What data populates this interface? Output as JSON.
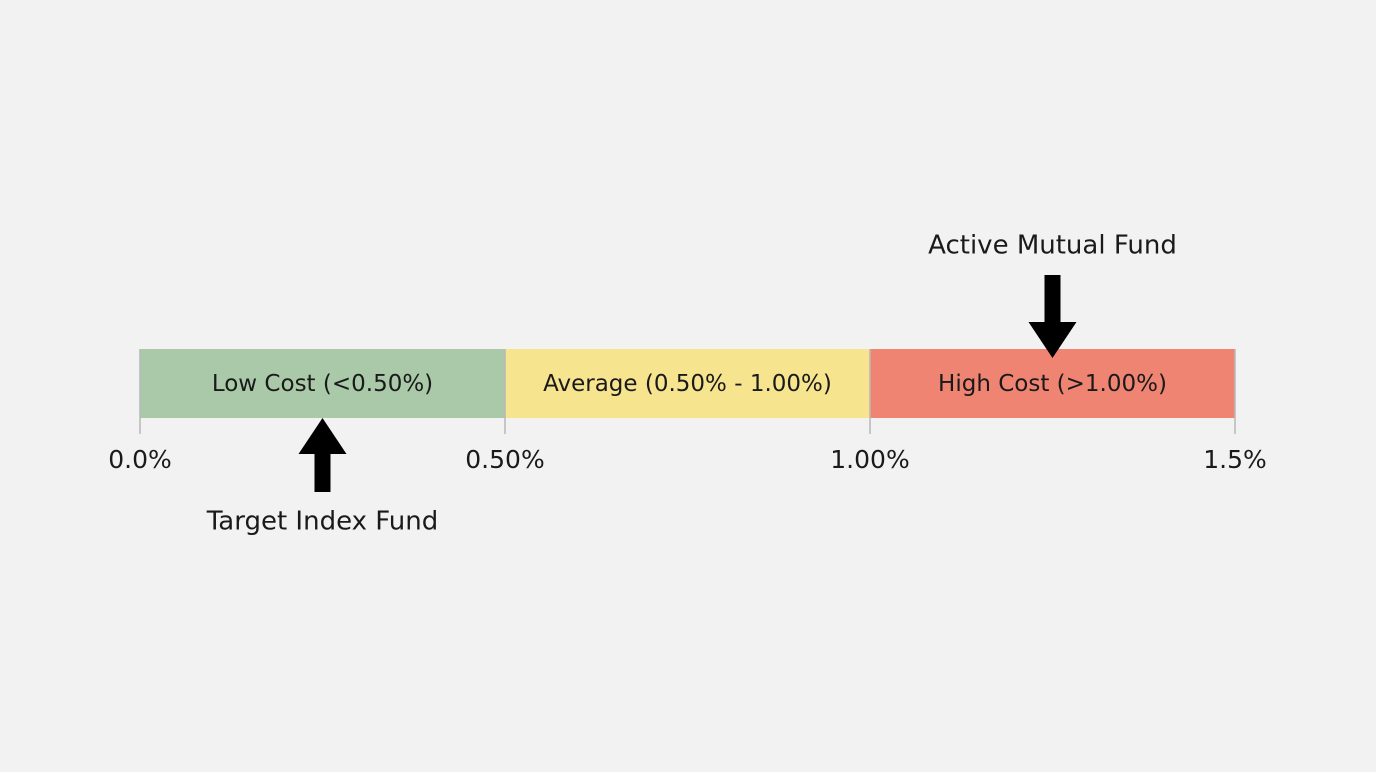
{
  "chart_data": {
    "type": "scale",
    "xlim": [
      0,
      1.5
    ],
    "xticks": [
      {
        "value": 0,
        "label": "0.0%"
      },
      {
        "value": 0.5,
        "label": "0.50%"
      },
      {
        "value": 1.0,
        "label": "1.00%"
      },
      {
        "value": 1.5,
        "label": "1.5%"
      }
    ],
    "bands": [
      {
        "name": "Low Cost (<0.50%)",
        "color": "#a9c9a9",
        "from": 0,
        "to": 0.5
      },
      {
        "name": "Average (0.50% - 1.00%)",
        "color": "#f7e48e",
        "from": 0.5,
        "to": 1.0
      },
      {
        "name": "High Cost (>1.00%)",
        "color": "#f08472",
        "from": 1.0,
        "to": 1.5
      }
    ],
    "markers": [
      {
        "name": "Target Index Fund",
        "value": 0.25,
        "side": "below"
      },
      {
        "name": "Active Mutual Fund",
        "value": 1.25,
        "side": "above"
      }
    ]
  }
}
